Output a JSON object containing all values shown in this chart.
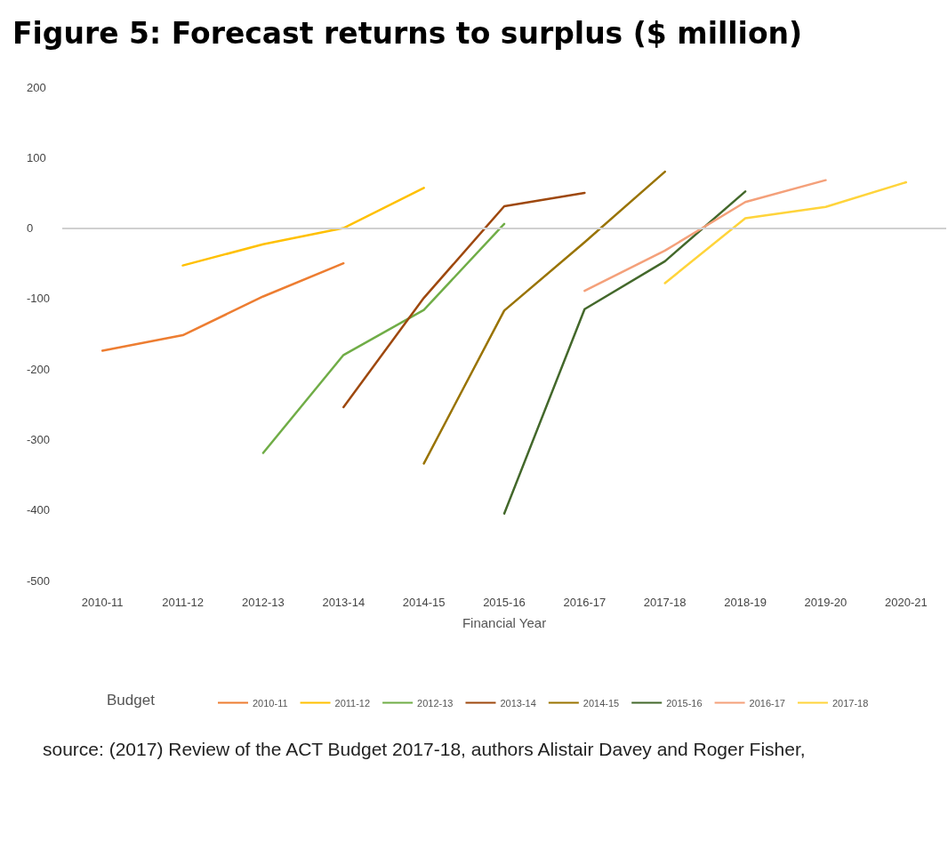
{
  "chart_data": {
    "type": "line",
    "title": "Figure 5: Forecast returns to surplus ($ million)",
    "xlabel": "Financial Year",
    "legend_title": "Budget",
    "categories": [
      "2010-11",
      "2011-12",
      "2012-13",
      "2013-14",
      "2014-15",
      "2015-16",
      "2016-17",
      "2017-18",
      "2018-19",
      "2019-20",
      "2020-21"
    ],
    "series": [
      {
        "name": "2010-11",
        "color": "#ed7d31",
        "values": [
          -174,
          -152,
          -97,
          -50,
          null,
          null,
          null,
          null,
          null,
          null,
          null
        ]
      },
      {
        "name": "2011-12",
        "color": "#ffc000",
        "values": [
          null,
          -53,
          -23,
          0,
          57,
          null,
          null,
          null,
          null,
          null,
          null
        ]
      },
      {
        "name": "2012-13",
        "color": "#70ad47",
        "values": [
          null,
          null,
          -319,
          -180,
          -116,
          6,
          null,
          null,
          null,
          null,
          null
        ]
      },
      {
        "name": "2013-14",
        "color": "#9e480e",
        "values": [
          null,
          null,
          null,
          -254,
          -99,
          31,
          50,
          null,
          null,
          null,
          null
        ]
      },
      {
        "name": "2014-15",
        "color": "#997300",
        "values": [
          null,
          null,
          null,
          null,
          -334,
          -117,
          -20,
          80,
          null,
          null,
          null
        ]
      },
      {
        "name": "2015-16",
        "color": "#43682b",
        "values": [
          null,
          null,
          null,
          null,
          null,
          -405,
          -115,
          -47,
          52,
          null,
          null
        ]
      },
      {
        "name": "2016-17",
        "color": "#f4a07a",
        "values": [
          null,
          null,
          null,
          null,
          null,
          null,
          -89,
          -32,
          37,
          68,
          null
        ]
      },
      {
        "name": "2017-18",
        "color": "#ffd43b",
        "values": [
          null,
          null,
          null,
          null,
          null,
          null,
          null,
          -78,
          14,
          30,
          65
        ]
      }
    ],
    "ylim": [
      -500,
      200
    ],
    "yticks": [
      -500,
      -400,
      -300,
      -200,
      -100,
      0,
      100,
      200
    ],
    "ref_lines": [
      {
        "axis": "y",
        "value": 0,
        "color": "#d0d0d0"
      }
    ],
    "grid": false,
    "legend": "bottom",
    "marker": "none",
    "line_style": "solid",
    "annotations": [
      "source: (2017) Review of the ACT Budget 2017-18, authors Alistair Davey and Roger Fisher,"
    ]
  }
}
